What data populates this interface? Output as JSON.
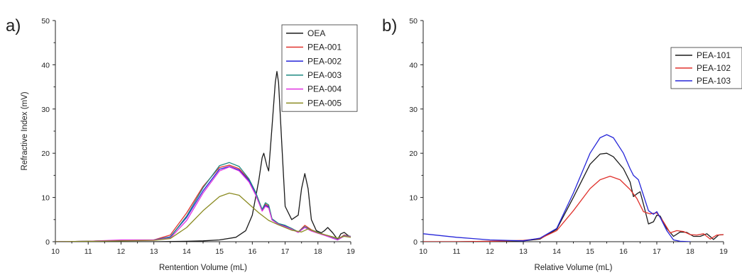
{
  "chart_data": [
    {
      "panel_label": "a)",
      "type": "line",
      "xlabel": "Rentention Volume (mL)",
      "ylabel": "Refractive Index (mV)",
      "xlim": [
        10,
        19
      ],
      "ylim": [
        0,
        50
      ],
      "xticks": [
        10,
        11,
        12,
        13,
        14,
        15,
        16,
        17,
        18,
        19
      ],
      "yticks": [
        0,
        10,
        20,
        30,
        40,
        50
      ],
      "legend_position": "top-right",
      "series": [
        {
          "name": "OEA",
          "color": "#1a1a1a",
          "x": [
            10,
            11,
            12,
            13,
            14,
            14.5,
            15,
            15.5,
            15.8,
            16.0,
            16.1,
            16.2,
            16.3,
            16.35,
            16.45,
            16.5,
            16.6,
            16.7,
            16.75,
            16.8,
            16.9,
            17.0,
            17.2,
            17.4,
            17.5,
            17.6,
            17.7,
            17.8,
            17.95,
            18.1,
            18.2,
            18.3,
            18.45,
            18.6,
            18.7,
            18.8,
            18.9,
            19.0
          ],
          "y": [
            0,
            0,
            0,
            0,
            0.1,
            0.2,
            0.4,
            1.0,
            2.5,
            6,
            10,
            14,
            19,
            20,
            17,
            16,
            26,
            36,
            38.5,
            36,
            22,
            8,
            5,
            6,
            12,
            15.4,
            12,
            5,
            2.5,
            2,
            2.5,
            3.2,
            2,
            0.5,
            1.8,
            2.1,
            1.5,
            1.0
          ]
        },
        {
          "name": "PEA-001",
          "color": "#e0322d",
          "x": [
            10,
            11,
            12,
            13,
            13.5,
            14,
            14.5,
            15,
            15.3,
            15.6,
            15.9,
            16.1,
            16.3,
            16.4,
            16.5,
            16.6,
            16.8,
            17.0,
            17.2,
            17.4,
            17.6,
            17.8,
            18.0,
            18.3,
            18.6,
            18.8,
            19.0
          ],
          "y": [
            0,
            0.1,
            0.3,
            0.4,
            1.5,
            6.5,
            12.5,
            16.8,
            17.3,
            16.5,
            14,
            11,
            7,
            8.5,
            8.0,
            5,
            4,
            3.6,
            3.0,
            2.2,
            3.7,
            2.7,
            2.1,
            1.3,
            0.5,
            1.5,
            1.2
          ]
        },
        {
          "name": "PEA-002",
          "color": "#2626d9",
          "x": [
            10,
            11,
            12,
            13,
            13.5,
            14,
            14.5,
            15,
            15.3,
            15.6,
            15.9,
            16.1,
            16.3,
            16.4,
            16.5,
            16.6,
            16.8,
            17.0,
            17.2,
            17.4,
            17.6,
            17.8,
            18.0,
            18.3,
            18.6,
            18.8,
            19.0
          ],
          "y": [
            0,
            0.1,
            0.3,
            0.4,
            1.1,
            5.5,
            11.5,
            16.4,
            17.0,
            16.2,
            13.8,
            10.8,
            7,
            8.2,
            7.8,
            5,
            4,
            3.5,
            2.9,
            2.1,
            3.3,
            2.5,
            2.0,
            1.2,
            0.4,
            1.3,
            1.1
          ]
        },
        {
          "name": "PEA-003",
          "color": "#1f8a82",
          "x": [
            10,
            11,
            12,
            13,
            13.5,
            14,
            14.5,
            15,
            15.3,
            15.6,
            15.9,
            16.1,
            16.3,
            16.4,
            16.5,
            16.6,
            16.8,
            17.0,
            17.2,
            17.4,
            17.6,
            17.8,
            18.0,
            18.3,
            18.6,
            18.8,
            19.0
          ],
          "y": [
            0,
            0.1,
            0.3,
            0.4,
            1.0,
            5.8,
            12.2,
            17.2,
            17.9,
            17.0,
            14.2,
            11.2,
            7.3,
            8.8,
            8.3,
            5.2,
            4.1,
            3.7,
            3.0,
            2.2,
            3.4,
            2.6,
            2.1,
            1.3,
            0.5,
            1.4,
            1.2
          ]
        },
        {
          "name": "PEA-004",
          "color": "#e033e0",
          "x": [
            10,
            11,
            12,
            13,
            13.5,
            14,
            14.5,
            15,
            15.3,
            15.6,
            15.9,
            16.1,
            16.3,
            16.4,
            16.5,
            16.6,
            16.8,
            17.0,
            17.2,
            17.4,
            17.6,
            17.8,
            18.0,
            18.3,
            18.6,
            18.8,
            19.0
          ],
          "y": [
            0,
            0.1,
            0.4,
            0.4,
            0.8,
            4.8,
            11.0,
            16.0,
            16.9,
            16.0,
            13.5,
            10.6,
            6.9,
            8.0,
            7.6,
            4.9,
            3.9,
            3.4,
            2.8,
            2.1,
            3.2,
            2.4,
            1.9,
            1.2,
            0.4,
            1.3,
            1.1
          ]
        },
        {
          "name": "PEA-005",
          "color": "#8b8b22",
          "x": [
            10,
            11,
            12,
            13,
            13.5,
            14,
            14.5,
            15,
            15.3,
            15.6,
            15.9,
            16.2,
            16.5,
            16.8,
            17.0,
            17.2,
            17.5,
            17.7,
            18.0,
            18.3,
            18.6,
            18.8,
            19.0
          ],
          "y": [
            0,
            0.1,
            0.2,
            0.3,
            0.7,
            3.2,
            7.0,
            10.2,
            11.0,
            10.5,
            8.5,
            6.5,
            4.8,
            3.8,
            3.2,
            2.6,
            2.2,
            2.9,
            2.0,
            1.4,
            0.8,
            1.2,
            1.0
          ]
        }
      ]
    },
    {
      "panel_label": "b)",
      "type": "line",
      "xlabel": "Relative Volume (mL)",
      "ylabel": "",
      "xlim": [
        10,
        19
      ],
      "ylim": [
        0,
        50
      ],
      "xticks": [
        10,
        11,
        12,
        13,
        14,
        15,
        16,
        17,
        18,
        19
      ],
      "yticks": [
        0,
        10,
        20,
        30,
        40,
        50
      ],
      "legend_position": "top-right",
      "series": [
        {
          "name": "PEA-101",
          "color": "#1a1a1a",
          "x": [
            10,
            11,
            12,
            13,
            13.5,
            14,
            14.5,
            15,
            15.3,
            15.5,
            15.7,
            16.0,
            16.2,
            16.3,
            16.4,
            16.5,
            16.6,
            16.75,
            16.9,
            17.0,
            17.1,
            17.3,
            17.5,
            17.7,
            17.9,
            18.1,
            18.3,
            18.5,
            18.7,
            18.85,
            19.0
          ],
          "y": [
            0,
            0,
            0.1,
            0.2,
            0.6,
            2.8,
            10,
            17.5,
            19.8,
            20.0,
            19.2,
            16.5,
            13.5,
            10.2,
            10.8,
            11.3,
            8.5,
            4.0,
            4.5,
            6.0,
            5.8,
            3.0,
            1.2,
            2.2,
            2.1,
            1.2,
            1.2,
            1.8,
            0.5,
            1.5,
            1.6
          ]
        },
        {
          "name": "PEA-102",
          "color": "#e0322d",
          "x": [
            10,
            11,
            12,
            13,
            13.5,
            14,
            14.5,
            15,
            15.3,
            15.6,
            15.9,
            16.2,
            16.4,
            16.6,
            16.8,
            17.0,
            17.2,
            17.4,
            17.6,
            17.8,
            18.0,
            18.2,
            18.4,
            18.6,
            18.8,
            19.0
          ],
          "y": [
            0,
            0,
            0.1,
            0.3,
            0.7,
            2.5,
            7,
            12.0,
            14.0,
            14.8,
            14.0,
            11.8,
            9.8,
            6.8,
            6.3,
            6.5,
            4.5,
            2.0,
            2.5,
            2.3,
            1.6,
            1.5,
            1.8,
            0.6,
            1.5,
            1.6
          ]
        },
        {
          "name": "PEA-103",
          "color": "#2626d9",
          "x": [
            10,
            10.5,
            11,
            11.5,
            12,
            12.5,
            13,
            13.5,
            14,
            14.5,
            15,
            15.3,
            15.5,
            15.7,
            16.0,
            16.2,
            16.3,
            16.45,
            16.6,
            16.75,
            16.9,
            17.0,
            17.1,
            17.3,
            17.5,
            17.7,
            18.0
          ],
          "y": [
            1.8,
            1.4,
            1.0,
            0.7,
            0.4,
            0.3,
            0.2,
            0.8,
            3.0,
            11,
            20.0,
            23.5,
            24.2,
            23.5,
            20.0,
            16.5,
            15.0,
            14.0,
            10.5,
            7.0,
            6.2,
            6.8,
            5.5,
            2.5,
            0.4,
            0.1,
            0.0
          ]
        }
      ]
    }
  ]
}
